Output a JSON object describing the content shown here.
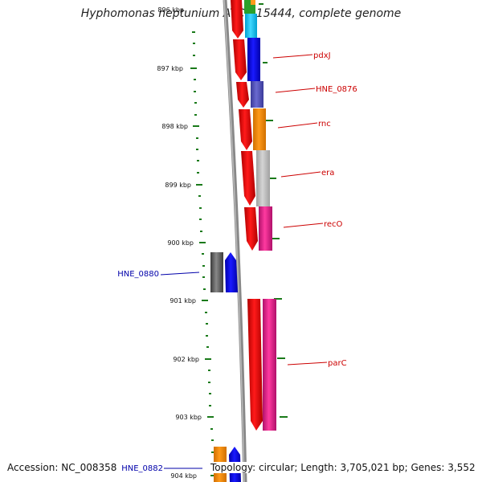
{
  "title": "Hyphomonas neptunium ATCC 15444, complete genome",
  "footer": {
    "accession": "Accession: NC_008358",
    "summary": "Topology: circular; Length: 3,705,021 bp; Genes: 3,552"
  },
  "scale_labels": [
    "896 kbp",
    "897 kbp",
    "898 kbp",
    "899 kbp",
    "900 kbp",
    "901 kbp",
    "902 kbp",
    "903 kbp",
    "904 kbp"
  ],
  "gene_labels": [
    {
      "name": "pdxJ",
      "strand": "reverse",
      "color": "#cc0000"
    },
    {
      "name": "HNE_0876",
      "strand": "reverse",
      "color": "#cc0000"
    },
    {
      "name": "rnc",
      "strand": "reverse",
      "color": "#cc0000"
    },
    {
      "name": "era",
      "strand": "reverse",
      "color": "#cc0000"
    },
    {
      "name": "recO",
      "strand": "reverse",
      "color": "#cc0000"
    },
    {
      "name": "HNE_0880",
      "strand": "forward",
      "color": "#0000aa"
    },
    {
      "name": "parC",
      "strand": "reverse",
      "color": "#cc0000"
    },
    {
      "name": "HNE_0882",
      "strand": "forward",
      "color": "#0000aa"
    }
  ],
  "colors": {
    "strand_reverse": "#ff0000",
    "strand_forward": "#0000ff",
    "backbone": "#888888",
    "ticks": "#1a7a1a"
  }
}
